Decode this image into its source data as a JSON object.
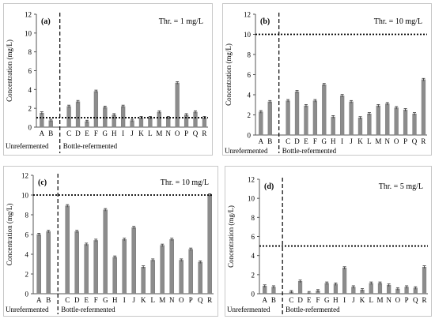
{
  "chart_data": [
    {
      "type": "bar",
      "panel_label": "(a)",
      "threshold_label": "Thr. = 1 mg/L",
      "threshold": 1,
      "ylabel": "Concentration (mg/L)",
      "ylim": [
        0,
        12
      ],
      "yticks": [
        0,
        2,
        4,
        6,
        8,
        10,
        12
      ],
      "categories": [
        "A",
        "B",
        "C",
        "D",
        "E",
        "F",
        "G",
        "H",
        "I",
        "J",
        "K",
        "L",
        "M",
        "N",
        "O",
        "P",
        "Q",
        "R"
      ],
      "values": [
        1.5,
        0.7,
        2.2,
        2.7,
        0.6,
        3.8,
        2.1,
        1.3,
        2.2,
        0.7,
        1.0,
        1.0,
        1.6,
        1.0,
        4.7,
        1.3,
        1.6,
        1.0
      ],
      "group_labels": [
        "Unrefermented",
        "Bottle-refermented"
      ],
      "grid": false
    },
    {
      "type": "bar",
      "panel_label": "(b)",
      "threshold_label": "Thr. = 10 mg/L",
      "threshold": 10,
      "ylabel": "Concentration (mg/L)",
      "ylim": [
        0,
        12
      ],
      "yticks": [
        0,
        2,
        4,
        6,
        8,
        10,
        12
      ],
      "categories": [
        "A",
        "B",
        "C",
        "D",
        "E",
        "F",
        "G",
        "H",
        "I",
        "J",
        "K",
        "L",
        "M",
        "N",
        "O",
        "P",
        "Q",
        "R"
      ],
      "values": [
        2.3,
        3.3,
        3.4,
        4.3,
        2.9,
        3.4,
        5.0,
        1.8,
        3.9,
        3.3,
        1.7,
        2.1,
        2.9,
        3.1,
        2.7,
        2.5,
        2.1,
        5.5
      ],
      "group_labels": [
        "Unrefermented",
        "Bottle-refermented"
      ],
      "grid": false
    },
    {
      "type": "bar",
      "panel_label": "(c)",
      "threshold_label": "Thr. = 10 mg/L",
      "threshold": 10,
      "ylabel": "Concentration (mg/L)",
      "ylim": [
        0,
        12
      ],
      "yticks": [
        0,
        2,
        4,
        6,
        8,
        10,
        12
      ],
      "categories": [
        "A",
        "B",
        "C",
        "D",
        "E",
        "F",
        "G",
        "H",
        "I",
        "J",
        "K",
        "L",
        "M",
        "N",
        "O",
        "P",
        "Q",
        "R"
      ],
      "values": [
        6.0,
        6.3,
        8.9,
        6.3,
        5.0,
        5.4,
        8.5,
        3.7,
        5.5,
        6.7,
        2.7,
        3.4,
        4.9,
        5.5,
        3.4,
        4.5,
        3.2,
        10.0
      ],
      "group_labels": [
        "Unrefermented",
        "Bottle-refermented"
      ],
      "grid": false
    },
    {
      "type": "bar",
      "panel_label": "(d)",
      "threshold_label": "Thr. = 5 mg/L",
      "threshold": 5,
      "ylabel": "Concentration (mg/L)",
      "ylim": [
        0,
        12
      ],
      "yticks": [
        0,
        2,
        4,
        6,
        8,
        10,
        12
      ],
      "categories": [
        "A",
        "B",
        "C",
        "D",
        "E",
        "F",
        "G",
        "H",
        "I",
        "J",
        "K",
        "L",
        "M",
        "N",
        "O",
        "P",
        "Q",
        "R"
      ],
      "values": [
        0.8,
        0.7,
        0.2,
        1.3,
        0.1,
        0.3,
        1.1,
        1.0,
        2.7,
        0.7,
        0.4,
        1.1,
        1.1,
        0.9,
        0.5,
        0.7,
        0.6,
        2.8
      ],
      "group_labels": [
        "Unrefermented",
        "Bottle-refermented"
      ],
      "grid": false
    }
  ],
  "colors": {
    "bar": "#8c8c8c",
    "bar_edge": "#7a7a7a",
    "axis": "#555555",
    "threshold_line": "#000000",
    "divider": "#000000"
  }
}
